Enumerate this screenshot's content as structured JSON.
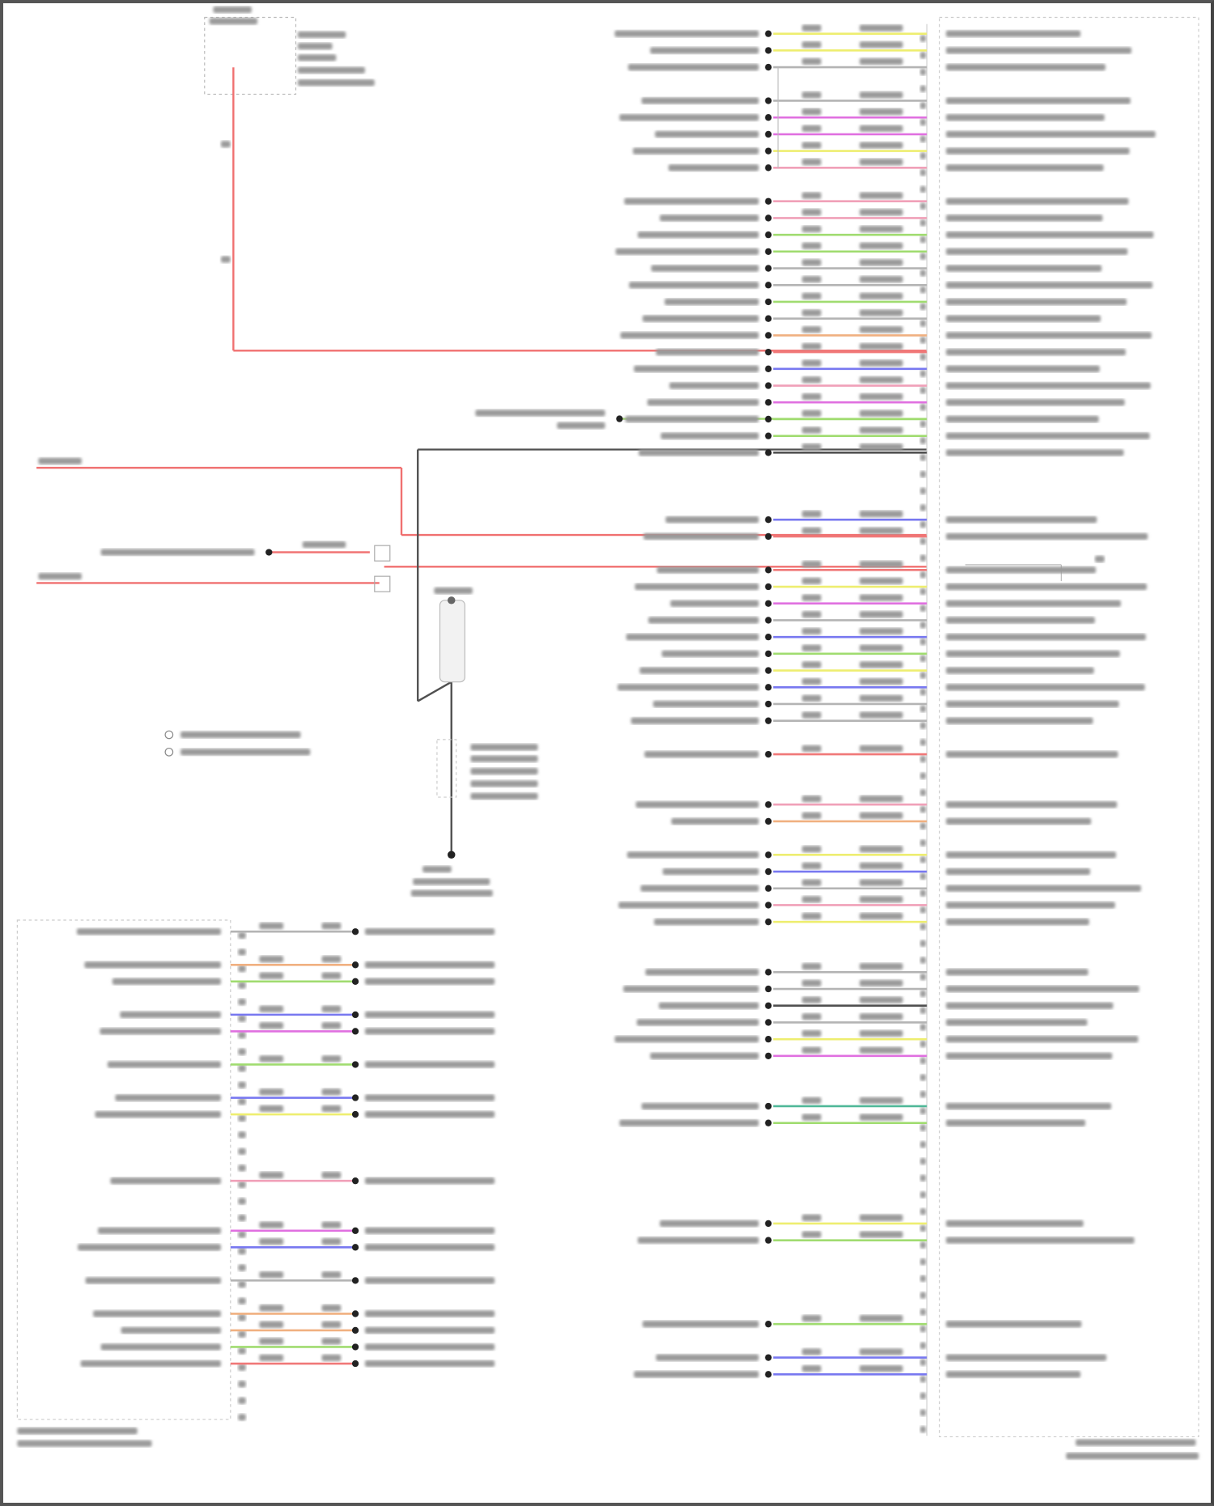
{
  "palette": {
    "Y": "#eeee70",
    "G": "#b4b4b4",
    "M": "#e070e0",
    "P": "#f0a0b8",
    "Gr": "#a0dc70",
    "R": "#f07878",
    "B": "#7878f0",
    "O": "#f0b080",
    "T": "#50b898",
    "K": "#505050"
  },
  "power_wire_color": "#f07070",
  "ground_wire_color": "#505050",
  "right_connector": {
    "pin_count": 84,
    "wires": [
      [
        0,
        "Y"
      ],
      [
        1,
        "Y"
      ],
      [
        2,
        "G"
      ],
      [
        4,
        "G"
      ],
      [
        5,
        "M"
      ],
      [
        6,
        "M"
      ],
      [
        7,
        "Y"
      ],
      [
        8,
        "P"
      ],
      [
        10,
        "P"
      ],
      [
        11,
        "P"
      ],
      [
        12,
        "Gr"
      ],
      [
        13,
        "Gr"
      ],
      [
        14,
        "G"
      ],
      [
        15,
        "G"
      ],
      [
        16,
        "Gr"
      ],
      [
        17,
        "G"
      ],
      [
        18,
        "O"
      ],
      [
        19,
        "R"
      ],
      [
        20,
        "B"
      ],
      [
        21,
        "P"
      ],
      [
        22,
        "M"
      ],
      [
        23,
        "Gr"
      ],
      [
        24,
        "Gr"
      ],
      [
        25,
        "K"
      ],
      [
        29,
        "B"
      ],
      [
        30,
        "R"
      ],
      [
        32,
        "R"
      ],
      [
        33,
        "Y"
      ],
      [
        34,
        "M"
      ],
      [
        35,
        "G"
      ],
      [
        36,
        "B"
      ],
      [
        37,
        "Gr"
      ],
      [
        38,
        "Y"
      ],
      [
        39,
        "B"
      ],
      [
        40,
        "G"
      ],
      [
        41,
        "G"
      ],
      [
        43,
        "R"
      ],
      [
        46,
        "P"
      ],
      [
        47,
        "O"
      ],
      [
        49,
        "Y"
      ],
      [
        50,
        "B"
      ],
      [
        51,
        "G"
      ],
      [
        52,
        "P"
      ],
      [
        53,
        "Y"
      ],
      [
        56,
        "G"
      ],
      [
        57,
        "G"
      ],
      [
        58,
        "K"
      ],
      [
        59,
        "G"
      ],
      [
        60,
        "Y"
      ],
      [
        61,
        "M"
      ],
      [
        64,
        "T"
      ],
      [
        65,
        "Gr"
      ],
      [
        71,
        "Y"
      ],
      [
        72,
        "Gr"
      ],
      [
        77,
        "Gr"
      ],
      [
        79,
        "B"
      ],
      [
        80,
        "B"
      ]
    ]
  },
  "left_connector": {
    "pin_count": 30,
    "wires": [
      [
        0,
        "G"
      ],
      [
        2,
        "O"
      ],
      [
        3,
        "Gr"
      ],
      [
        5,
        "B"
      ],
      [
        6,
        "M"
      ],
      [
        8,
        "Gr"
      ],
      [
        10,
        "B"
      ],
      [
        11,
        "Y"
      ],
      [
        15,
        "P"
      ],
      [
        18,
        "M"
      ],
      [
        19,
        "B"
      ],
      [
        21,
        "G"
      ],
      [
        23,
        "O"
      ],
      [
        24,
        "O"
      ],
      [
        25,
        "Gr"
      ],
      [
        26,
        "R"
      ]
    ]
  }
}
